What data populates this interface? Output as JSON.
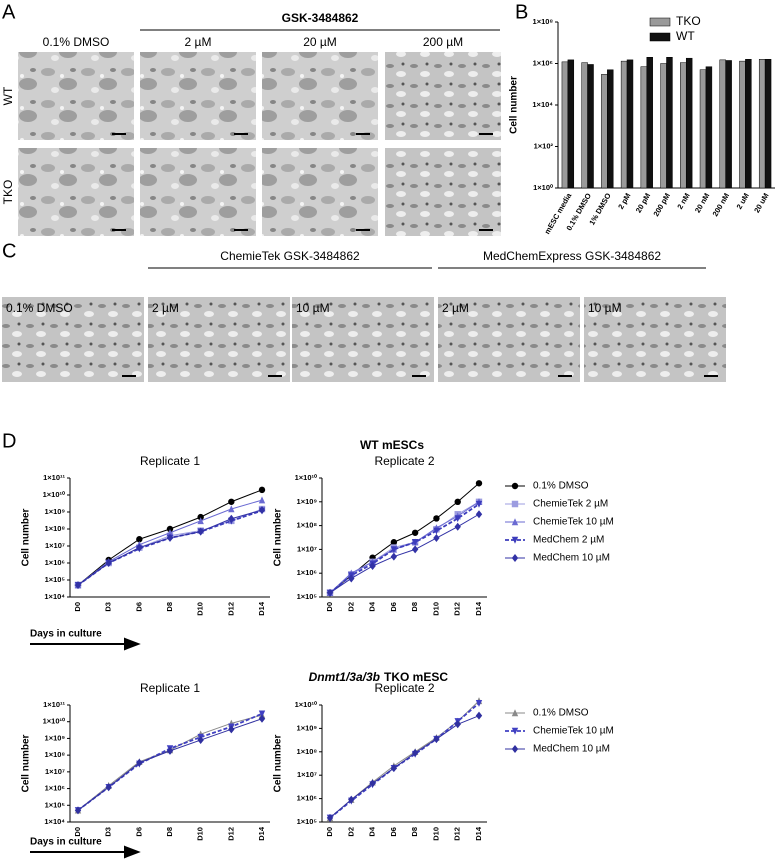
{
  "panel_a": {
    "letter": "A",
    "treatment": "GSK-3484862",
    "columns": [
      "0.1% DMSO",
      "2 µM",
      "20 µM",
      "200 µM"
    ],
    "rows": [
      "WT",
      "TKO"
    ]
  },
  "panel_b": {
    "letter": "B"
  },
  "panel_c": {
    "letter": "C",
    "groups": [
      "ChemieTek GSK-3484862",
      "MedChemExpress GSK-3484862"
    ],
    "images": [
      "0.1% DMSO",
      "2 µM",
      "10 µM",
      "2 µM",
      "10 µM"
    ]
  },
  "panel_d": {
    "letter": "D",
    "wt_title": "WT mESCs",
    "tko_title_italic": "Dnmt1/3a/3b",
    "tko_title": "TKO mESC",
    "x_label": "Days in culture"
  },
  "chart_data": [
    {
      "type": "bar",
      "ylabel": "Cell number",
      "y_scale": "log",
      "legend": "top-right",
      "categories": [
        "mESC media",
        "0.1% DMSO",
        "1% DMSO",
        "2 pM",
        "20 pM",
        "200 pM",
        "2 nM",
        "20 nM",
        "200 nM",
        "2 uM",
        "20 uM"
      ],
      "ylim": [
        1,
        100000000
      ],
      "yticks": [
        {
          "value": 1,
          "label": "1×10⁰"
        },
        {
          "value": 100,
          "label": "1×10²"
        },
        {
          "value": 10000,
          "label": "1×10⁴"
        },
        {
          "value": 1000000,
          "label": "1×10⁶"
        },
        {
          "value": 100000000,
          "label": "1×10⁸"
        }
      ],
      "series": [
        {
          "name": "TKO",
          "color": "#9a9a9a",
          "values": [
            1200000,
            1100000,
            300000,
            1300000,
            700000,
            1000000,
            1100000,
            500000,
            1500000,
            1300000,
            1600000
          ]
        },
        {
          "name": "WT",
          "color": "#111111",
          "values": [
            1500000,
            900000,
            500000,
            1500000,
            2000000,
            2000000,
            1800000,
            700000,
            1400000,
            1600000,
            1600000
          ]
        }
      ]
    },
    {
      "type": "line",
      "title": "Replicate 1",
      "ylabel": "Cell number",
      "y_scale": "log",
      "categories": [
        "D0",
        "D3",
        "D6",
        "D8",
        "D10",
        "D12",
        "D14"
      ],
      "ylim": [
        10000,
        100000000000
      ],
      "yticks": [
        {
          "value": 10000,
          "label": "1×10⁴"
        },
        {
          "value": 100000,
          "label": "1×10⁵"
        },
        {
          "value": 1000000,
          "label": "1×10⁶"
        },
        {
          "value": 10000000,
          "label": "1×10⁷"
        },
        {
          "value": 100000000,
          "label": "1×10⁸"
        },
        {
          "value": 1000000000,
          "label": "1×10⁹"
        },
        {
          "value": 10000000000,
          "label": "1×10¹⁰"
        },
        {
          "value": 100000000000,
          "label": "1×10¹¹"
        }
      ],
      "series": [
        {
          "color": "#000000",
          "marker": "circle",
          "values": [
            50000,
            1500000,
            25000000,
            100000000,
            500000000,
            4000000000,
            20000000000
          ]
        },
        {
          "color": "#9c9ce0",
          "marker": "square",
          "values": [
            50000,
            1000000,
            8000000,
            40000000,
            80000000,
            300000000,
            1500000000
          ]
        },
        {
          "color": "#6a6ad2",
          "marker": "triangle",
          "values": [
            50000,
            1200000,
            12000000,
            60000000,
            300000000,
            1500000000,
            5000000000
          ]
        },
        {
          "color": "#3c3cbc",
          "marker": "triangle-down",
          "dashed": true,
          "values": [
            50000,
            1000000,
            7000000,
            30000000,
            70000000,
            300000000,
            1200000000
          ]
        },
        {
          "color": "#3232a6",
          "marker": "diamond",
          "values": [
            50000,
            1000000,
            8000000,
            30000000,
            70000000,
            400000000,
            1300000000
          ]
        }
      ]
    },
    {
      "type": "line",
      "title": "Replicate 2",
      "ylabel": "Cell number",
      "y_scale": "log",
      "legend": "right",
      "categories": [
        "D0",
        "D2",
        "D4",
        "D6",
        "D8",
        "D10",
        "D12",
        "D14"
      ],
      "ylim": [
        100000,
        10000000000
      ],
      "yticks": [
        {
          "value": 100000,
          "label": "1×10⁵"
        },
        {
          "value": 1000000,
          "label": "1×10⁶"
        },
        {
          "value": 10000000,
          "label": "1×10⁷"
        },
        {
          "value": 100000000,
          "label": "1×10⁸"
        },
        {
          "value": 1000000000,
          "label": "1×10⁹"
        },
        {
          "value": 10000000000,
          "label": "1×10¹⁰"
        }
      ],
      "series": [
        {
          "name": "0.1% DMSO",
          "color": "#000000",
          "marker": "circle",
          "values": [
            150000,
            800000,
            4500000,
            20000000,
            50000000,
            200000000,
            1000000000,
            6000000000
          ]
        },
        {
          "name": "ChemieTek 2 µM",
          "color": "#9c9ce0",
          "marker": "square",
          "values": [
            150000,
            900000,
            3000000,
            12000000,
            20000000,
            70000000,
            300000000,
            1000000000
          ]
        },
        {
          "name": "ChemieTek 10 µM",
          "color": "#6a6ad2",
          "marker": "triangle",
          "values": [
            150000,
            1000000,
            3000000,
            10000000,
            20000000,
            80000000,
            250000000,
            1000000000
          ]
        },
        {
          "name": "MedChem 2 µM",
          "color": "#3c3cbc",
          "marker": "triangle-down",
          "dashed": true,
          "values": [
            150000,
            800000,
            2500000,
            10000000,
            20000000,
            60000000,
            200000000,
            800000000
          ]
        },
        {
          "name": "MedChem 10 µM",
          "color": "#3232a6",
          "marker": "diamond",
          "values": [
            150000,
            600000,
            2000000,
            5000000,
            10000000,
            30000000,
            90000000,
            300000000
          ]
        }
      ]
    },
    {
      "type": "line",
      "title": "Replicate 1",
      "ylabel": "Cell number",
      "y_scale": "log",
      "categories": [
        "D0",
        "D3",
        "D6",
        "D8",
        "D10",
        "D12",
        "D14"
      ],
      "ylim": [
        10000,
        100000000000
      ],
      "yticks": [
        {
          "value": 10000,
          "label": "1×10⁴"
        },
        {
          "value": 100000,
          "label": "1×10⁵"
        },
        {
          "value": 1000000,
          "label": "1×10⁶"
        },
        {
          "value": 10000000,
          "label": "1×10⁷"
        },
        {
          "value": 100000000,
          "label": "1×10⁸"
        },
        {
          "value": 1000000000,
          "label": "1×10⁹"
        },
        {
          "value": 10000000000,
          "label": "1×10¹⁰"
        },
        {
          "value": 100000000000,
          "label": "1×10¹¹"
        }
      ],
      "series": [
        {
          "color": "#8a8a8a",
          "marker": "triangle",
          "values": [
            50000,
            1500000,
            40000000,
            200000000,
            1800000000,
            8000000000,
            25000000000
          ]
        },
        {
          "color": "#4040c2",
          "marker": "triangle-down",
          "dashed": true,
          "values": [
            50000,
            1200000,
            30000000,
            250000000,
            1200000000,
            5000000000,
            30000000000
          ]
        },
        {
          "color": "#3030a0",
          "marker": "diamond",
          "values": [
            50000,
            1200000,
            35000000,
            180000000,
            800000000,
            3500000000,
            15000000000
          ]
        }
      ]
    },
    {
      "type": "line",
      "title": "Replicate 2",
      "ylabel": "Cell number",
      "y_scale": "log",
      "legend": "right",
      "categories": [
        "D0",
        "D2",
        "D4",
        "D6",
        "D8",
        "D10",
        "D12",
        "D14"
      ],
      "ylim": [
        100000,
        10000000000
      ],
      "yticks": [
        {
          "value": 100000,
          "label": "1×10⁵"
        },
        {
          "value": 1000000,
          "label": "1×10⁶"
        },
        {
          "value": 10000000,
          "label": "1×10⁷"
        },
        {
          "value": 100000000,
          "label": "1×10⁸"
        },
        {
          "value": 1000000000,
          "label": "1×10⁹"
        },
        {
          "value": 10000000000,
          "label": "1×10¹⁰"
        }
      ],
      "series": [
        {
          "name": "0.1% DMSO",
          "color": "#8a8a8a",
          "marker": "triangle",
          "values": [
            150000,
            900000,
            5000000,
            25000000,
            100000000,
            400000000,
            2000000000,
            15000000000
          ]
        },
        {
          "name": "ChemieTek 10 µM",
          "color": "#4040c2",
          "marker": "triangle-down",
          "dashed": true,
          "values": [
            150000,
            800000,
            4000000,
            20000000,
            80000000,
            350000000,
            2000000000,
            12000000000
          ]
        },
        {
          "name": "MedChem 10 µM",
          "color": "#3030a0",
          "marker": "diamond",
          "values": [
            150000,
            900000,
            4500000,
            20000000,
            90000000,
            350000000,
            1500000000,
            3500000000
          ]
        }
      ]
    }
  ]
}
